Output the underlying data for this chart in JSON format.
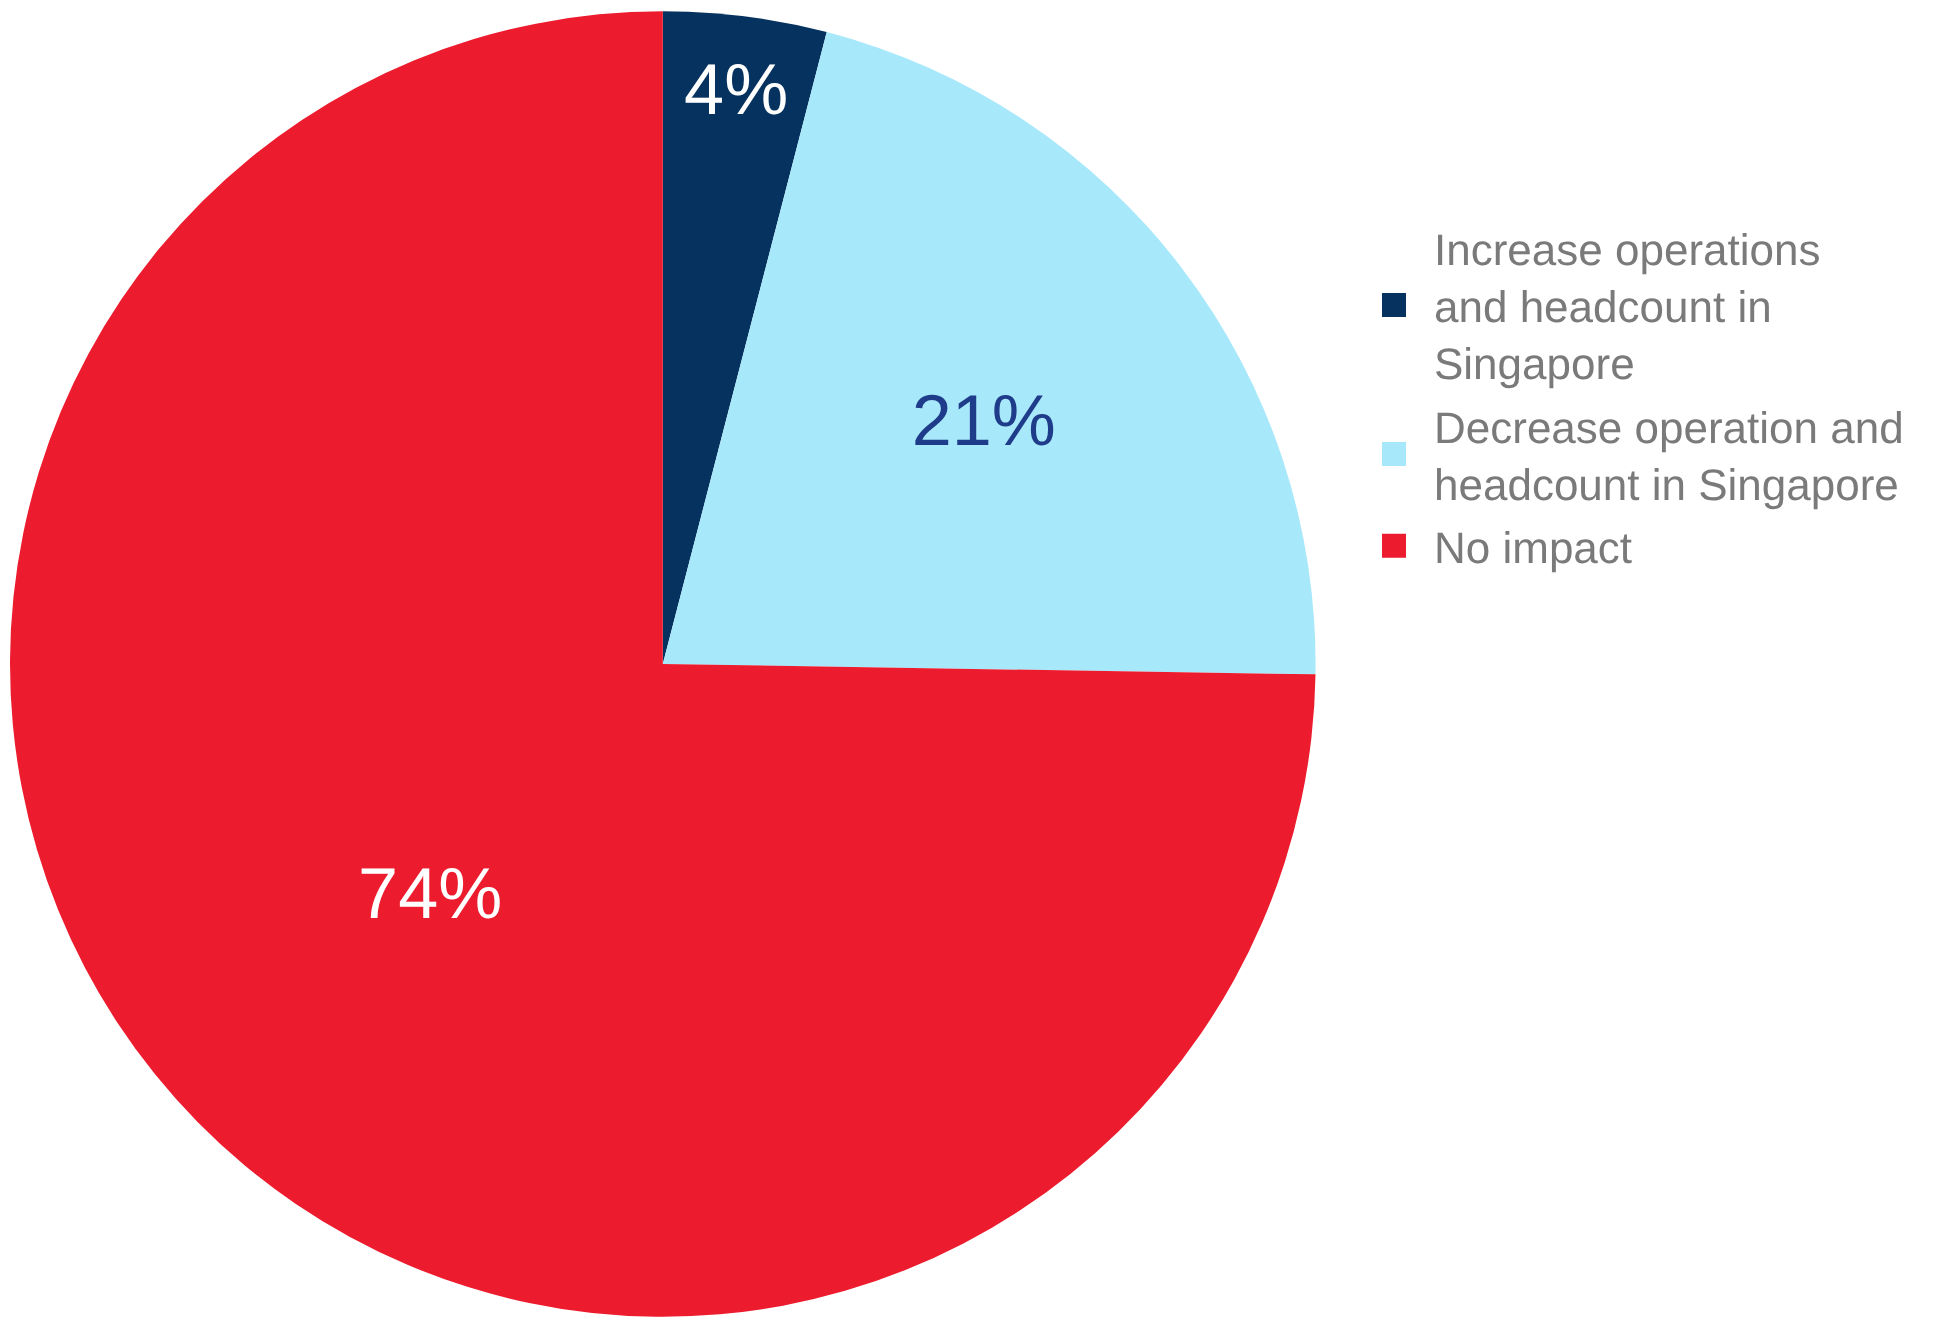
{
  "chart_data": {
    "type": "pie",
    "categories": [
      "Increase operations and headcount in Singapore",
      "Decrease operation and headcount in Singapore",
      "No impact"
    ],
    "values": [
      4,
      21,
      74
    ],
    "colors": [
      "#06325f",
      "#a8e8fb",
      "#ec1c2e"
    ],
    "value_labels": [
      "4%",
      "21%",
      "74%"
    ],
    "legend": "right"
  }
}
